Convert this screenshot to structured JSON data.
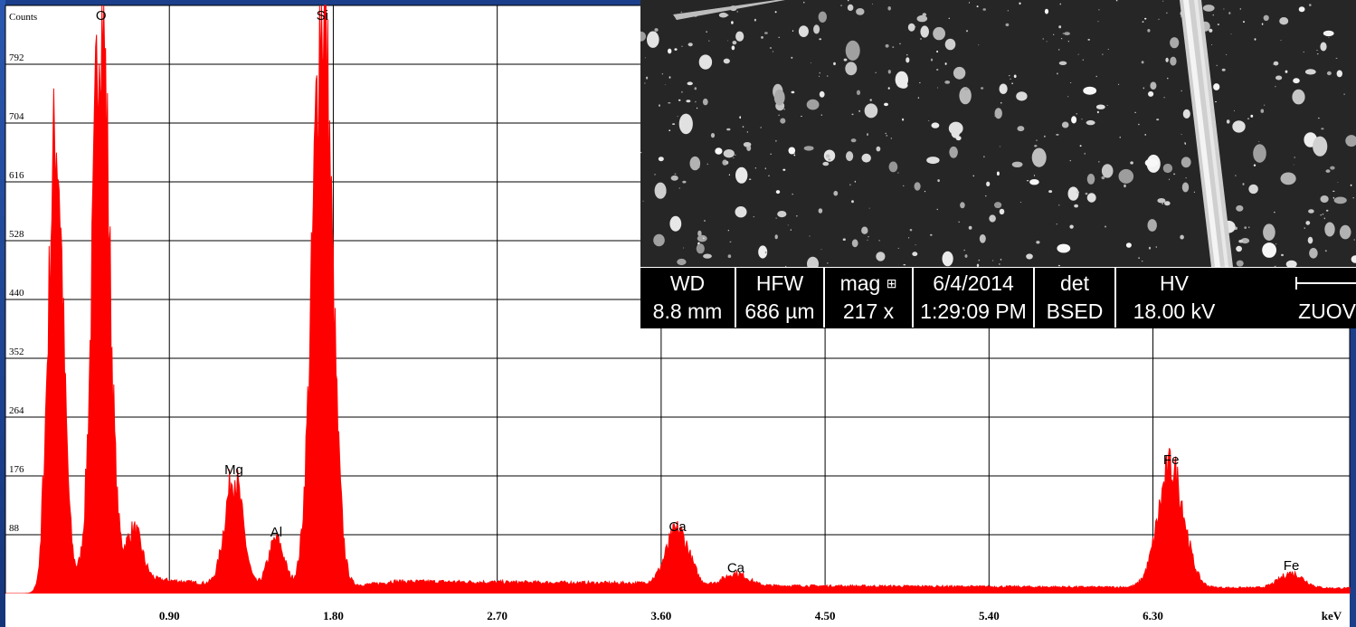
{
  "chart_data": {
    "type": "bar",
    "title": "",
    "ylabel": "Counts",
    "xlabel": "keV",
    "xlim": [
      0,
      7.38
    ],
    "ylim": [
      0,
      880
    ],
    "yticks": [
      88,
      176,
      264,
      352,
      440,
      528,
      616,
      704,
      792
    ],
    "xticks": [
      "0.90",
      "1.80",
      "2.70",
      "3.60",
      "4.50",
      "5.40",
      "6.30"
    ],
    "xtick_values": [
      0.9,
      1.8,
      2.7,
      3.6,
      4.5,
      5.4,
      6.3
    ],
    "grid": true,
    "color": "#ff0000",
    "peaks": [
      {
        "label": "",
        "energy": 0.277,
        "counts": 655,
        "width": 0.018
      },
      {
        "label": "O",
        "energy": 0.525,
        "counts": 870,
        "width": 0.02
      },
      {
        "label": "",
        "energy": 0.705,
        "counts": 72,
        "width": 0.02
      },
      {
        "label": "Mg",
        "energy": 1.254,
        "counts": 165,
        "width": 0.022
      },
      {
        "label": "Al",
        "energy": 1.487,
        "counts": 72,
        "width": 0.02
      },
      {
        "label": "Si",
        "energy": 1.74,
        "counts": 870,
        "width": 0.024
      },
      {
        "label": "Ca",
        "energy": 3.69,
        "counts": 80,
        "width": 0.028
      },
      {
        "label": "Ca",
        "energy": 4.01,
        "counts": 18,
        "width": 0.03
      },
      {
        "label": "Fe",
        "energy": 6.4,
        "counts": 180,
        "width": 0.032
      },
      {
        "label": "Fe",
        "energy": 7.06,
        "counts": 22,
        "width": 0.03
      }
    ]
  },
  "sem_info": {
    "headers": [
      "WD",
      "HFW",
      "mag",
      "6/4/2014",
      "det",
      "HV",
      ""
    ],
    "values": [
      "8.8 mm",
      "686 µm",
      "217 x",
      "1:29:09 PM",
      "BSED",
      "18.00 kV",
      "ZUOV"
    ]
  }
}
